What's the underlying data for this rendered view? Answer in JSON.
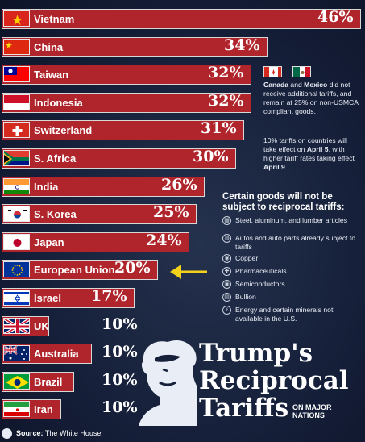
{
  "chart_data": {
    "type": "bar",
    "title": "Trump's Reciprocal Tariffs",
    "subtitle": "ON MAJOR NATIONS",
    "xmax": 46,
    "bars": [
      {
        "country": "Vietnam",
        "label": "46%",
        "value": 46,
        "flag": "vietnam"
      },
      {
        "country": "China",
        "label": "34%",
        "value": 34,
        "flag": "china"
      },
      {
        "country": "Taiwan",
        "label": "32%",
        "value": 32,
        "flag": "taiwan"
      },
      {
        "country": "Indonesia",
        "label": "32%",
        "value": 32,
        "flag": "indonesia"
      },
      {
        "country": "Switzerland",
        "label": "31%",
        "value": 31,
        "flag": "switzerland"
      },
      {
        "country": "S. Africa",
        "label": "30%",
        "value": 30,
        "flag": "south-africa"
      },
      {
        "country": "India",
        "label": "26%",
        "value": 26,
        "flag": "india"
      },
      {
        "country": "S. Korea",
        "label": "25%",
        "value": 25,
        "flag": "south-korea"
      },
      {
        "country": "Japan",
        "label": "24%",
        "value": 24,
        "flag": "japan"
      },
      {
        "country": "European Union",
        "label": "20%",
        "value": 20,
        "flag": "eu",
        "highlight": true
      },
      {
        "country": "Israel",
        "label": "17%",
        "value": 17,
        "flag": "israel"
      },
      {
        "country": "UK",
        "label": "10%",
        "value": 10,
        "flag": "uk"
      },
      {
        "country": "Australia",
        "label": "10%",
        "value": 10,
        "flag": "australia"
      },
      {
        "country": "Brazil",
        "label": "10%",
        "value": 10,
        "flag": "brazil"
      },
      {
        "country": "Iran",
        "label": "10%",
        "value": 10,
        "flag": "iran"
      }
    ]
  },
  "colors": {
    "bar": "#b0252b",
    "arrow": "#f2d21b",
    "background": "#16203a"
  },
  "note_canada_mexico": {
    "bold": "Canada",
    "and": " and ",
    "bold2": "Mexico",
    "rest": " did not receive additional tariffs, and remain at 25% on non-USMCA compliant goods."
  },
  "note_effective": {
    "a": "10% tariffs on countries will take effect on ",
    "b": "April 5",
    "c": ", with higher tariff rates taking effect ",
    "d": "April 9",
    "e": "."
  },
  "goods": {
    "title": "Certain goods will not be subject to reciprocal tariffs:",
    "items": [
      {
        "text": "Steel, aluminum, and lumber articles",
        "icon": "steel-icon"
      },
      {
        "text": "Autos and auto parts already subject to tariffs",
        "icon": "car-icon"
      },
      {
        "text": "Copper",
        "icon": "copper-icon"
      },
      {
        "text": "Pharmaceuticals",
        "icon": "pill-icon"
      },
      {
        "text": "Semiconductors",
        "icon": "chip-icon"
      },
      {
        "text": "Bullion",
        "icon": "bullion-icon"
      },
      {
        "text": "Energy and certain minerals not available in the U.S.",
        "icon": "energy-icon"
      }
    ]
  },
  "title_lines": [
    "Trump's",
    "Reciprocal",
    "Tariffs"
  ],
  "subtitle_lines": [
    "ON MAJOR",
    "NATIONS"
  ],
  "source": {
    "label": "Source:",
    "text": " The White House"
  }
}
